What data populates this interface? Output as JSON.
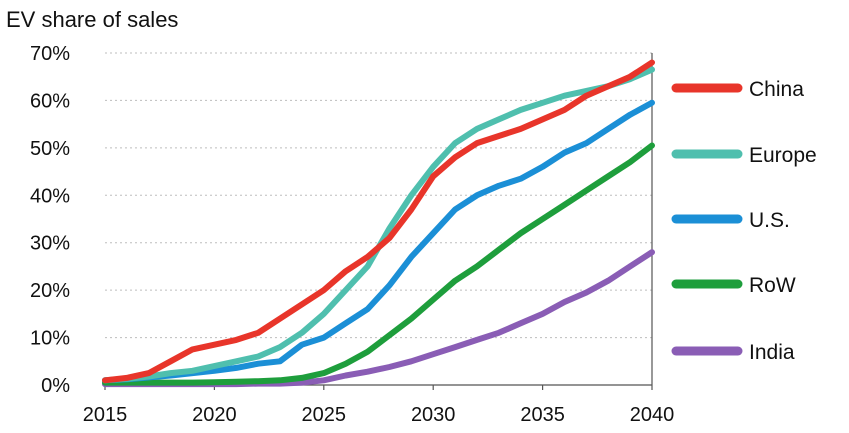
{
  "chart_data": {
    "type": "line",
    "title": "EV share of sales",
    "xlabel": "",
    "ylabel": "",
    "xlim": [
      2015,
      2040
    ],
    "ylim": [
      0,
      70
    ],
    "x_ticks": [
      "2015",
      "2020",
      "2025",
      "2030",
      "2035",
      "2040"
    ],
    "y_ticks": [
      "0%",
      "10%",
      "20%",
      "30%",
      "40%",
      "50%",
      "60%",
      "70%"
    ],
    "grid": true,
    "legend_position": "right",
    "x": [
      2015,
      2016,
      2017,
      2018,
      2019,
      2020,
      2021,
      2022,
      2023,
      2024,
      2025,
      2026,
      2027,
      2028,
      2029,
      2030,
      2031,
      2032,
      2033,
      2034,
      2035,
      2036,
      2037,
      2038,
      2039,
      2040
    ],
    "series": [
      {
        "name": "China",
        "color": "#e8352a",
        "values": [
          1,
          1.5,
          2.5,
          5,
          7.5,
          8.5,
          9.5,
          11,
          14,
          17,
          20,
          24,
          27,
          31,
          37,
          44,
          48,
          51,
          52.5,
          54,
          56,
          58,
          61,
          63,
          65,
          68
        ]
      },
      {
        "name": "Europe",
        "color": "#4fbfae",
        "values": [
          1,
          1.3,
          1.8,
          2.5,
          3,
          4,
          5,
          6,
          8,
          11,
          15,
          20,
          25,
          33,
          40,
          46,
          51,
          54,
          56,
          58,
          59.5,
          61,
          62,
          63,
          64.5,
          66.5
        ]
      },
      {
        "name": "U.S.",
        "color": "#1b8fd6",
        "values": [
          1,
          1.2,
          1.6,
          2,
          2.5,
          3,
          3.6,
          4.5,
          5,
          8.5,
          10,
          13,
          16,
          21,
          27,
          32,
          37,
          40,
          42,
          43.5,
          46,
          49,
          51,
          54,
          57,
          59.5
        ]
      },
      {
        "name": "RoW",
        "color": "#1e9e3c",
        "values": [
          0.5,
          0.5,
          0.5,
          0.5,
          0.5,
          0.6,
          0.7,
          0.8,
          1,
          1.5,
          2.5,
          4.5,
          7,
          10.5,
          14,
          18,
          22,
          25,
          28.5,
          32,
          35,
          38,
          41,
          44,
          47,
          50.5
        ]
      },
      {
        "name": "India",
        "color": "#8a5db5",
        "values": [
          0.2,
          0.2,
          0.2,
          0.2,
          0.2,
          0.2,
          0.2,
          0.3,
          0.3,
          0.5,
          1,
          2,
          2.8,
          3.8,
          5,
          6.5,
          8,
          9.5,
          11,
          13,
          15,
          17.5,
          19.5,
          22,
          25,
          28
        ]
      }
    ]
  }
}
